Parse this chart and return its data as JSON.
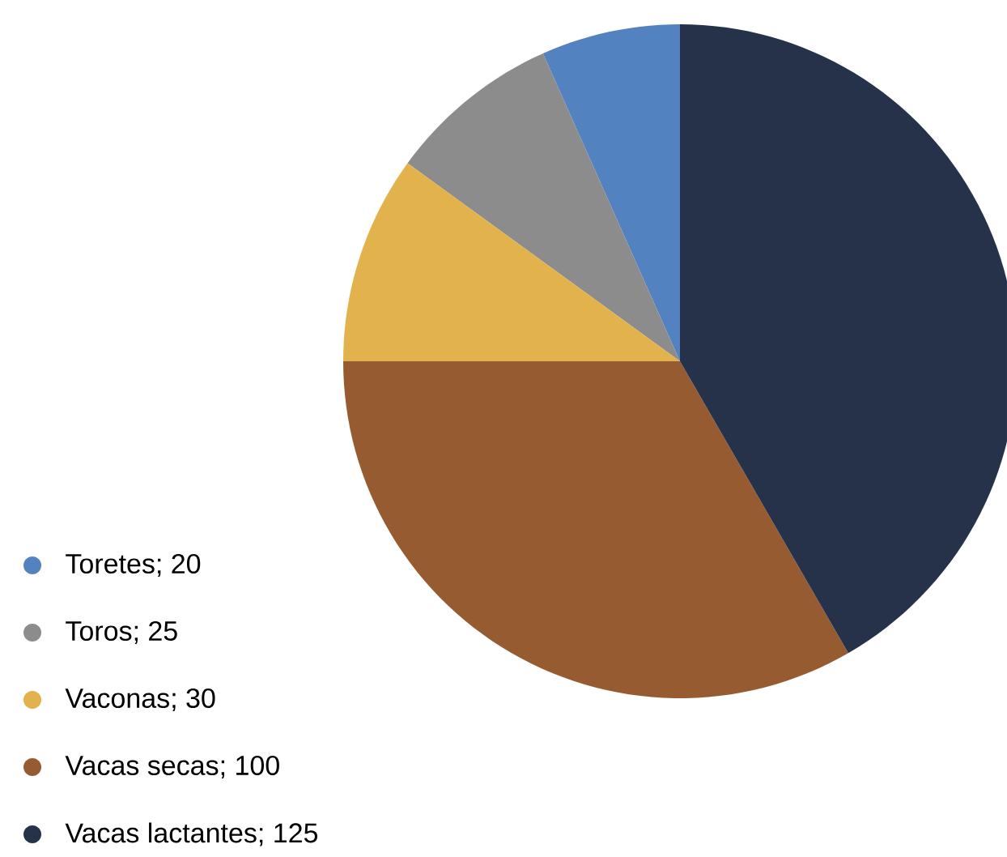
{
  "chart_data": {
    "type": "pie",
    "categories": [
      "Toretes; 20",
      "Toros; 25",
      "Vaconas; 30",
      "Vacas secas; 100",
      "Vacas lactantes; 125"
    ],
    "values": [
      20,
      25,
      30,
      100,
      125
    ],
    "colors": [
      "#5282bf",
      "#8c8c8c",
      "#e2b24c",
      "#965b30",
      "#25324a"
    ],
    "legend": "bottom left"
  }
}
